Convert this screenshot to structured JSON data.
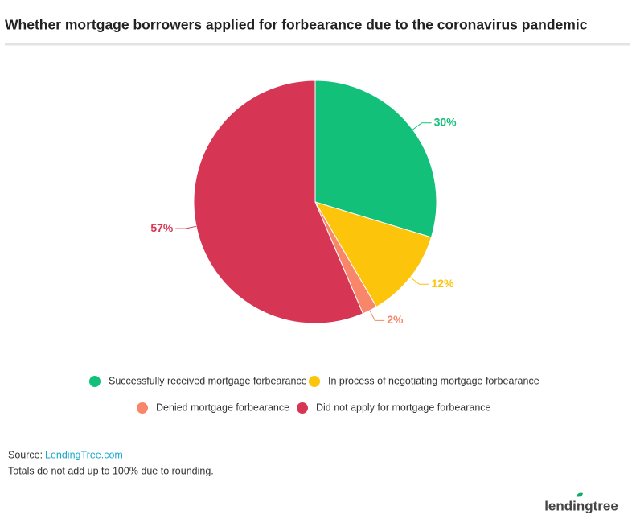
{
  "chart_data": {
    "type": "pie",
    "title": "Whether mortgage borrowers applied for forbearance due to the coronavirus pandemic",
    "categories": [
      "Successfully received mortgage forbearance",
      "In process of negotiating mortgage forbearance",
      "Denied mortgage forbearance",
      "Did not apply for mortgage forbearance"
    ],
    "values": [
      30,
      12,
      2,
      57
    ],
    "value_labels": [
      "30%",
      "12%",
      "2%",
      "57%"
    ],
    "colors": [
      "#12c07a",
      "#fdc40c",
      "#f7866b",
      "#d63653"
    ],
    "legend": "bottom",
    "source_label": "Source:",
    "source_link": "LendingTree.com",
    "note": "Totals do not add up to 100% due to rounding.",
    "logo": "lendingtree"
  }
}
